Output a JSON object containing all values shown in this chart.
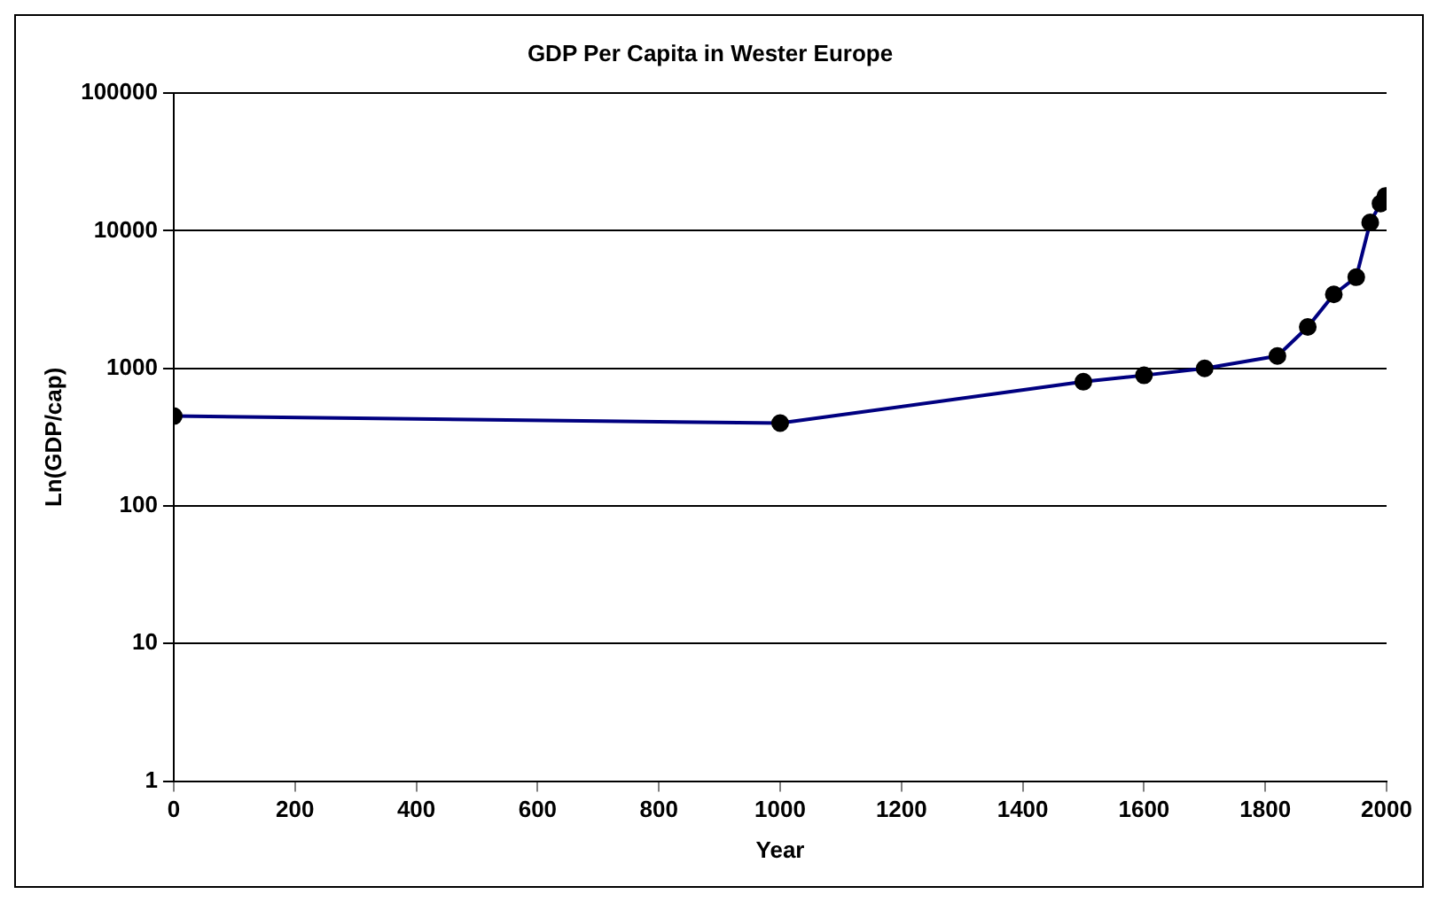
{
  "chart_data": {
    "type": "line",
    "title": "GDP Per Capita in Wester Europe",
    "xlabel": "Year",
    "ylabel": "Ln(GDP/cap)",
    "x": [
      0,
      1000,
      1500,
      1600,
      1700,
      1820,
      1870,
      1913,
      1950,
      1973,
      1990,
      1998
    ],
    "series": [
      {
        "color": "#000080",
        "values": [
          450,
          400,
          800,
          890,
          1000,
          1230,
          2000,
          3450,
          4600,
          11500,
          15800,
          17900
        ]
      }
    ],
    "xlim": [
      0,
      2000
    ],
    "xticks": [
      0,
      200,
      400,
      600,
      800,
      1000,
      1200,
      1400,
      1600,
      1800,
      2000
    ],
    "ylim": [
      1,
      100000
    ],
    "yticks": [
      1,
      10,
      100,
      1000,
      10000,
      100000
    ],
    "log": "y",
    "grid": "y",
    "legend": false,
    "marker": "circle",
    "line_style": "solid"
  }
}
